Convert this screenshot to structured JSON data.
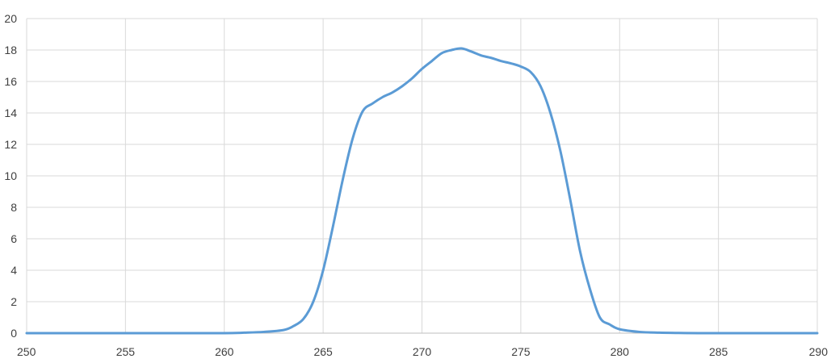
{
  "chart_data": {
    "type": "line",
    "title": "",
    "xlabel": "",
    "ylabel": "",
    "xlim": [
      250,
      290
    ],
    "ylim": [
      0,
      20
    ],
    "x_ticks": [
      250,
      255,
      260,
      265,
      270,
      275,
      280,
      285,
      290
    ],
    "y_ticks": [
      0,
      2,
      4,
      6,
      8,
      10,
      12,
      14,
      16,
      18,
      20
    ],
    "x_tick_labels": [
      "250",
      "255",
      "260",
      "265",
      "270",
      "275",
      "280",
      "285",
      "290"
    ],
    "y_tick_labels": [
      "0",
      "2",
      "4",
      "6",
      "8",
      "10",
      "12",
      "14",
      "16",
      "18",
      "20"
    ],
    "grid": true,
    "legend": "none",
    "series": [
      {
        "color": "#5b9bd5",
        "x": [
          250,
          252,
          254,
          256,
          258,
          260,
          261,
          262,
          263,
          263.5,
          264,
          264.5,
          265,
          265.5,
          266,
          266.5,
          267,
          267.5,
          268,
          268.5,
          269,
          269.5,
          270,
          270.5,
          271,
          271.5,
          272,
          272.5,
          273,
          273.5,
          274,
          274.5,
          275,
          275.5,
          276,
          276.5,
          277,
          277.5,
          278,
          278.5,
          279,
          279.5,
          280,
          281,
          282,
          283,
          284,
          286,
          288,
          290
        ],
        "y": [
          0,
          0,
          0,
          0,
          0,
          0,
          0.03,
          0.08,
          0.2,
          0.45,
          0.9,
          2.0,
          4.0,
          6.8,
          9.8,
          12.4,
          14.1,
          14.6,
          15.0,
          15.3,
          15.7,
          16.2,
          16.8,
          17.3,
          17.8,
          18.0,
          18.1,
          17.9,
          17.65,
          17.5,
          17.3,
          17.15,
          16.95,
          16.6,
          15.7,
          14.0,
          11.6,
          8.5,
          5.2,
          2.8,
          1.0,
          0.55,
          0.25,
          0.08,
          0.03,
          0.01,
          0,
          0,
          0,
          0
        ]
      }
    ]
  }
}
